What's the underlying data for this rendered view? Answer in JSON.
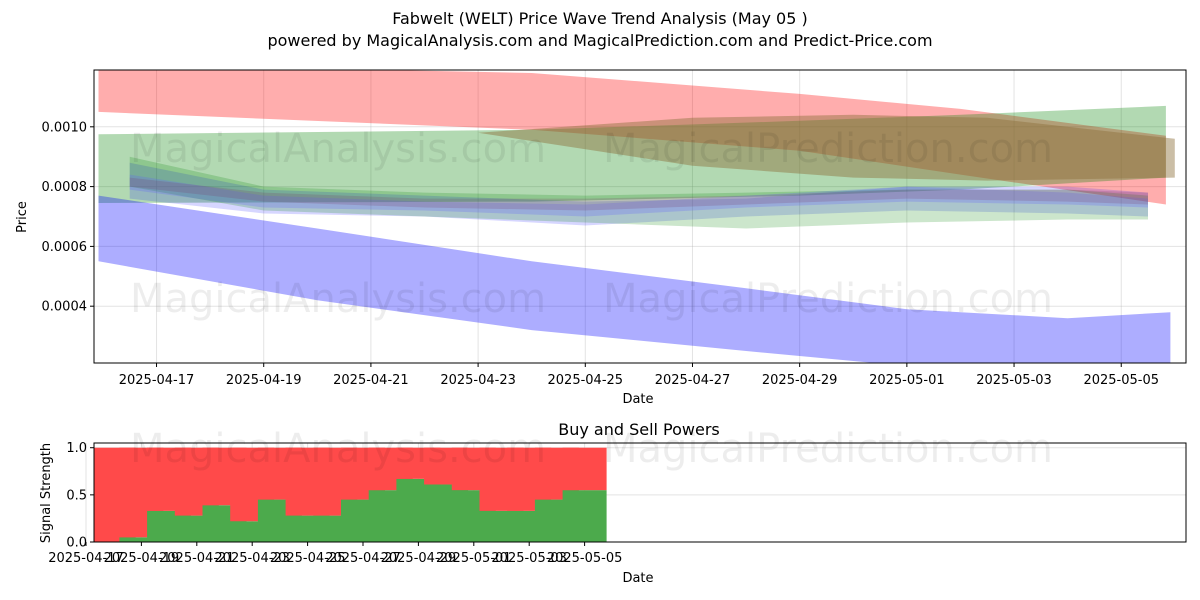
{
  "title": "Fabwelt (WELT) Price Wave Trend Analysis (May 05 )",
  "subtitle": "powered by MagicalAnalysis.com and MagicalPrediction.com and Predict-Price.com",
  "watermarks": [
    "MagicalAnalysis.com",
    "MagicalPrediction.com"
  ],
  "chart_data": [
    {
      "type": "area",
      "xlabel": "Date",
      "ylabel": "Price",
      "x_ticks": [
        "2025-04-17",
        "2025-04-19",
        "2025-04-21",
        "2025-04-23",
        "2025-04-25",
        "2025-04-27",
        "2025-04-29",
        "2025-05-01",
        "2025-05-03",
        "2025-05-05"
      ],
      "y_ticks": [
        "0.0004",
        "0.0006",
        "0.0008",
        "0.0010"
      ],
      "xlim": [
        "2025-04-15T20:00",
        "2025-05-06T05:00"
      ],
      "ylim": [
        0.00021,
        0.00119
      ],
      "grid": true,
      "bands": [
        {
          "color": "#ff0000",
          "opacity": 0.32,
          "x": [
            "2025-04-15T22:00",
            "2025-04-24T00:00",
            "2025-04-29T00:00",
            "2025-05-02T00:00",
            "2025-05-05T20:00"
          ],
          "upper": [
            0.00121,
            0.00118,
            0.00111,
            0.00106,
            0.00097
          ],
          "lower": [
            0.00105,
            0.00099,
            0.00092,
            0.00084,
            0.00074
          ]
        },
        {
          "color": "#008000",
          "opacity": 0.3,
          "x": [
            "2025-04-15T22:00",
            "2025-04-24T00:00",
            "2025-04-29T00:00",
            "2025-05-02T00:00",
            "2025-05-05T20:00"
          ],
          "upper": [
            0.000975,
            0.00099,
            0.00102,
            0.00104,
            0.00107
          ],
          "lower": [
            0.000745,
            0.00075,
            0.00077,
            0.00079,
            0.00083
          ]
        },
        {
          "color": "#8b6f3a",
          "opacity": 0.45,
          "x": [
            "2025-04-23T00:00",
            "2025-04-27T00:00",
            "2025-04-30T00:00",
            "2025-05-02T12:00",
            "2025-05-06T00:00"
          ],
          "upper": [
            0.00098,
            0.00103,
            0.00104,
            0.00103,
            0.00096
          ],
          "lower": [
            0.00098,
            0.00087,
            0.00083,
            0.00082,
            0.00083
          ]
        },
        {
          "color": "#0000ff",
          "opacity": 0.32,
          "x": [
            "2025-04-15T22:00",
            "2025-04-20T00:00",
            "2025-04-24T00:00",
            "2025-04-28T00:00",
            "2025-05-01T00:00",
            "2025-05-04T00:00",
            "2025-05-05T22:00"
          ],
          "upper": [
            0.00077,
            0.00066,
            0.00055,
            0.00046,
            0.00039,
            0.00036,
            0.00038
          ],
          "lower": [
            0.00055,
            0.00042,
            0.00032,
            0.00025,
            0.0002,
            0.00016,
            0.00018
          ]
        }
      ],
      "wave_clusters": [
        {
          "color": "#0000ff",
          "opacity": 0.16,
          "x": [
            "2025-04-16T12:00",
            "2025-04-19T00:00",
            "2025-04-22T00:00",
            "2025-04-25T00:00",
            "2025-04-28T00:00",
            "2025-05-01T00:00",
            "2025-05-04T00:00",
            "2025-05-05T12:00"
          ],
          "upper": [
            0.00088,
            0.00079,
            0.00077,
            0.00075,
            0.00076,
            0.0008,
            0.0008,
            0.00078
          ],
          "lower": [
            0.00076,
            0.00071,
            0.0007,
            0.00067,
            0.0007,
            0.00072,
            0.00071,
            0.0007
          ]
        },
        {
          "color": "#008000",
          "opacity": 0.2,
          "x": [
            "2025-04-16T12:00",
            "2025-04-19T00:00",
            "2025-04-22T00:00",
            "2025-04-25T00:00",
            "2025-04-28T00:00",
            "2025-05-01T00:00",
            "2025-05-04T00:00",
            "2025-05-05T12:00"
          ],
          "upper": [
            0.0009,
            0.0008,
            0.00078,
            0.00077,
            0.00078,
            0.00079,
            0.00079,
            0.00077
          ],
          "lower": [
            0.0008,
            0.00072,
            0.0007,
            0.00068,
            0.00066,
            0.00068,
            0.00069,
            0.00069
          ]
        },
        {
          "color": "#6060ff",
          "opacity": 0.25,
          "x": [
            "2025-04-16T12:00",
            "2025-04-19T00:00",
            "2025-04-22T00:00",
            "2025-04-25T00:00",
            "2025-04-28T00:00",
            "2025-05-01T00:00",
            "2025-05-04T00:00",
            "2025-05-05T12:00"
          ],
          "upper": [
            0.00084,
            0.00077,
            0.00075,
            0.00074,
            0.00077,
            0.0008,
            0.00078,
            0.00076
          ],
          "lower": [
            0.00079,
            0.00073,
            0.00072,
            0.0007,
            0.00073,
            0.00075,
            0.00074,
            0.00073
          ]
        },
        {
          "color": "#7a3a6a",
          "opacity": 0.22,
          "x": [
            "2025-04-16T12:00",
            "2025-04-19T00:00",
            "2025-04-22T00:00",
            "2025-04-25T00:00",
            "2025-04-28T00:00",
            "2025-05-01T00:00",
            "2025-05-04T00:00",
            "2025-05-05T12:00"
          ],
          "upper": [
            0.00083,
            0.00078,
            0.00076,
            0.00076,
            0.00077,
            0.00079,
            0.00079,
            0.00078
          ],
          "lower": [
            0.0008,
            0.00075,
            0.00073,
            0.00072,
            0.00074,
            0.00076,
            0.00075,
            0.00074
          ]
        }
      ]
    },
    {
      "type": "bar",
      "title": "Buy and Sell Powers",
      "xlabel": "Date",
      "ylabel": "Signal Strength",
      "x_ticks": [
        "2025-04-17",
        "2025-04-19",
        "2025-04-21",
        "2025-04-23",
        "2025-04-25",
        "2025-04-27",
        "2025-04-29",
        "2025-05-01",
        "2025-05-03",
        "2025-05-05"
      ],
      "y_ticks": [
        "0.0",
        "0.5",
        "1.0"
      ],
      "ylim": [
        0,
        1.05
      ],
      "grid": true,
      "categories": [
        "2025-04-18",
        "2025-04-19",
        "2025-04-20",
        "2025-04-21",
        "2025-04-22",
        "2025-04-23",
        "2025-04-24",
        "2025-04-25",
        "2025-04-26",
        "2025-04-27",
        "2025-04-28",
        "2025-04-29",
        "2025-04-30",
        "2025-05-01",
        "2025-05-02",
        "2025-05-03",
        "2025-05-04",
        "2025-05-05"
      ],
      "series": [
        {
          "color": "#4caa4c",
          "values": [
            0.0,
            0.05,
            0.33,
            0.28,
            0.39,
            0.22,
            0.45,
            0.28,
            0.28,
            0.45,
            0.55,
            0.67,
            0.61,
            0.55,
            0.33,
            0.33,
            0.45,
            0.55
          ]
        },
        {
          "color": "#ff4a4a",
          "values": [
            1.0,
            0.95,
            0.67,
            0.72,
            0.61,
            0.78,
            0.55,
            0.72,
            0.72,
            0.55,
            0.45,
            0.33,
            0.39,
            0.45,
            0.67,
            0.67,
            0.55,
            0.45
          ]
        }
      ]
    }
  ]
}
